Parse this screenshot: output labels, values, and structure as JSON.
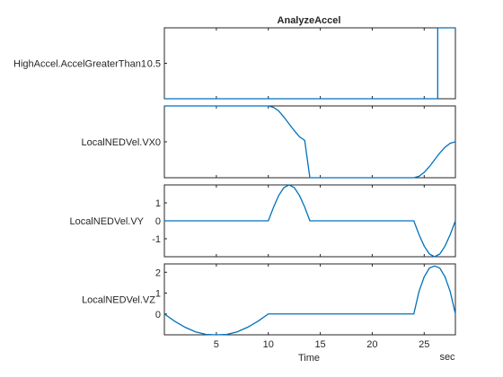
{
  "title": "AnalyzeAccel",
  "xlabel": "Time",
  "xunit": "sec",
  "colors": {
    "line": "#0072BD",
    "axes": "#262626",
    "background": "#ffffff"
  },
  "chart_data": {
    "type": "line",
    "title": "AnalyzeAccel",
    "xlabel": "Time",
    "xunit": "sec",
    "xlim": [
      0,
      28
    ],
    "xticks": [
      5,
      10,
      15,
      20,
      25
    ],
    "xtick_labels": [
      "5",
      "10",
      "15",
      "20",
      "25"
    ],
    "subplots": [
      {
        "ylabel": "HighAccel.AccelGreaterThan1",
        "ylim": [
          0,
          1
        ],
        "yticks": [
          0.5
        ],
        "ytick_labels": [
          "0.5"
        ],
        "series": [
          {
            "x": [
              0,
              26.3,
              26.3,
              28
            ],
            "y": [
              0,
              0,
              1,
              1
            ]
          }
        ]
      },
      {
        "ylabel": "LocalNEDVel.VX",
        "ylim": [
          -1,
          1
        ],
        "yticks": [
          0
        ],
        "ytick_labels": [
          "0"
        ],
        "series": [
          {
            "x": [
              0,
              10,
              10.5,
              11,
              11.5,
              12,
              12.5,
              13,
              13.5,
              14,
              24,
              24.5,
              25,
              25.5,
              26,
              26.5,
              27,
              27.5,
              28
            ],
            "y": [
              1,
              1,
              0.96,
              0.86,
              0.69,
              0.5,
              0.31,
              0.14,
              0.04,
              -1,
              -1,
              -0.96,
              -0.85,
              -0.69,
              -0.5,
              -0.31,
              -0.15,
              -0.04,
              0
            ]
          }
        ]
      },
      {
        "ylabel": "LocalNEDVel.VY",
        "ylim": [
          -2,
          2
        ],
        "yticks": [
          -1,
          0,
          1
        ],
        "ytick_labels": [
          "-1",
          "0",
          "1"
        ],
        "series": [
          {
            "x": [
              0,
              10,
              10.5,
              11,
              11.5,
              12,
              12.5,
              13,
              13.5,
              14,
              24,
              24.5,
              25,
              25.5,
              26,
              26.5,
              27,
              27.5,
              28
            ],
            "y": [
              0,
              0,
              0.75,
              1.41,
              1.85,
              2,
              1.85,
              1.41,
              0.77,
              0,
              0,
              -0.77,
              -1.41,
              -1.85,
              -2,
              -1.85,
              -1.41,
              -0.77,
              0
            ]
          }
        ]
      },
      {
        "ylabel": "LocalNEDVel.VZ",
        "ylim": [
          -1,
          2.4
        ],
        "yticks": [
          0,
          1,
          2
        ],
        "ytick_labels": [
          "0",
          "1",
          "2"
        ],
        "series": [
          {
            "x": [
              0,
              1,
              2,
              3,
              4,
              5,
              6,
              7,
              8,
              9,
              10,
              24,
              24.5,
              25,
              25.5,
              26,
              26.5,
              27,
              27.5,
              28
            ],
            "y": [
              0,
              -0.35,
              -0.64,
              -0.86,
              -0.98,
              -1,
              -0.98,
              -0.86,
              -0.64,
              -0.35,
              0,
              0,
              1.08,
              1.78,
              2.2,
              2.3,
              2.2,
              1.78,
              1.08,
              0
            ]
          }
        ]
      }
    ]
  }
}
